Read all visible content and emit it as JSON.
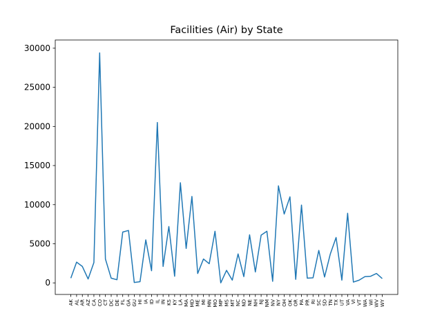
{
  "chart_data": {
    "type": "line",
    "title": "Facilities (Air) by State",
    "xlabel": "",
    "ylabel": "",
    "ylim": [
      -1480,
      31050
    ],
    "yticks": [
      0,
      5000,
      10000,
      15000,
      20000,
      25000,
      30000
    ],
    "grid": false,
    "series": [
      {
        "color": "#1f77b4",
        "x": [
          "AK",
          "AL",
          "AR",
          "AZ",
          "CA",
          "CO",
          "CT",
          "DC",
          "DE",
          "FL",
          "GA",
          "GU",
          "HI",
          "IA",
          "ID",
          "IL",
          "IN",
          "KS",
          "KY",
          "LA",
          "MA",
          "MD",
          "ME",
          "MI",
          "MN",
          "MO",
          "MP",
          "MS",
          "MT",
          "NC",
          "ND",
          "NE",
          "NH",
          "NJ",
          "NM",
          "NV",
          "NY",
          "OH",
          "OK",
          "OR",
          "PA",
          "PR",
          "RI",
          "SC",
          "SD",
          "TN",
          "TX",
          "UT",
          "VA",
          "VI",
          "VT",
          "WA",
          "WI",
          "WV",
          "WY"
        ],
        "values": [
          600,
          2650,
          2100,
          500,
          2600,
          29400,
          3050,
          600,
          400,
          6500,
          6700,
          50,
          150,
          5500,
          1550,
          20500,
          2100,
          7200,
          850,
          12800,
          4400,
          11050,
          1200,
          3050,
          2450,
          6600,
          0,
          1600,
          350,
          3700,
          800,
          6150,
          1400,
          6100,
          6600,
          200,
          12400,
          8800,
          11000,
          450,
          9950,
          600,
          650,
          4150,
          750,
          3700,
          5800,
          350,
          8900,
          100,
          350,
          800,
          850,
          1200,
          550
        ]
      }
    ]
  }
}
